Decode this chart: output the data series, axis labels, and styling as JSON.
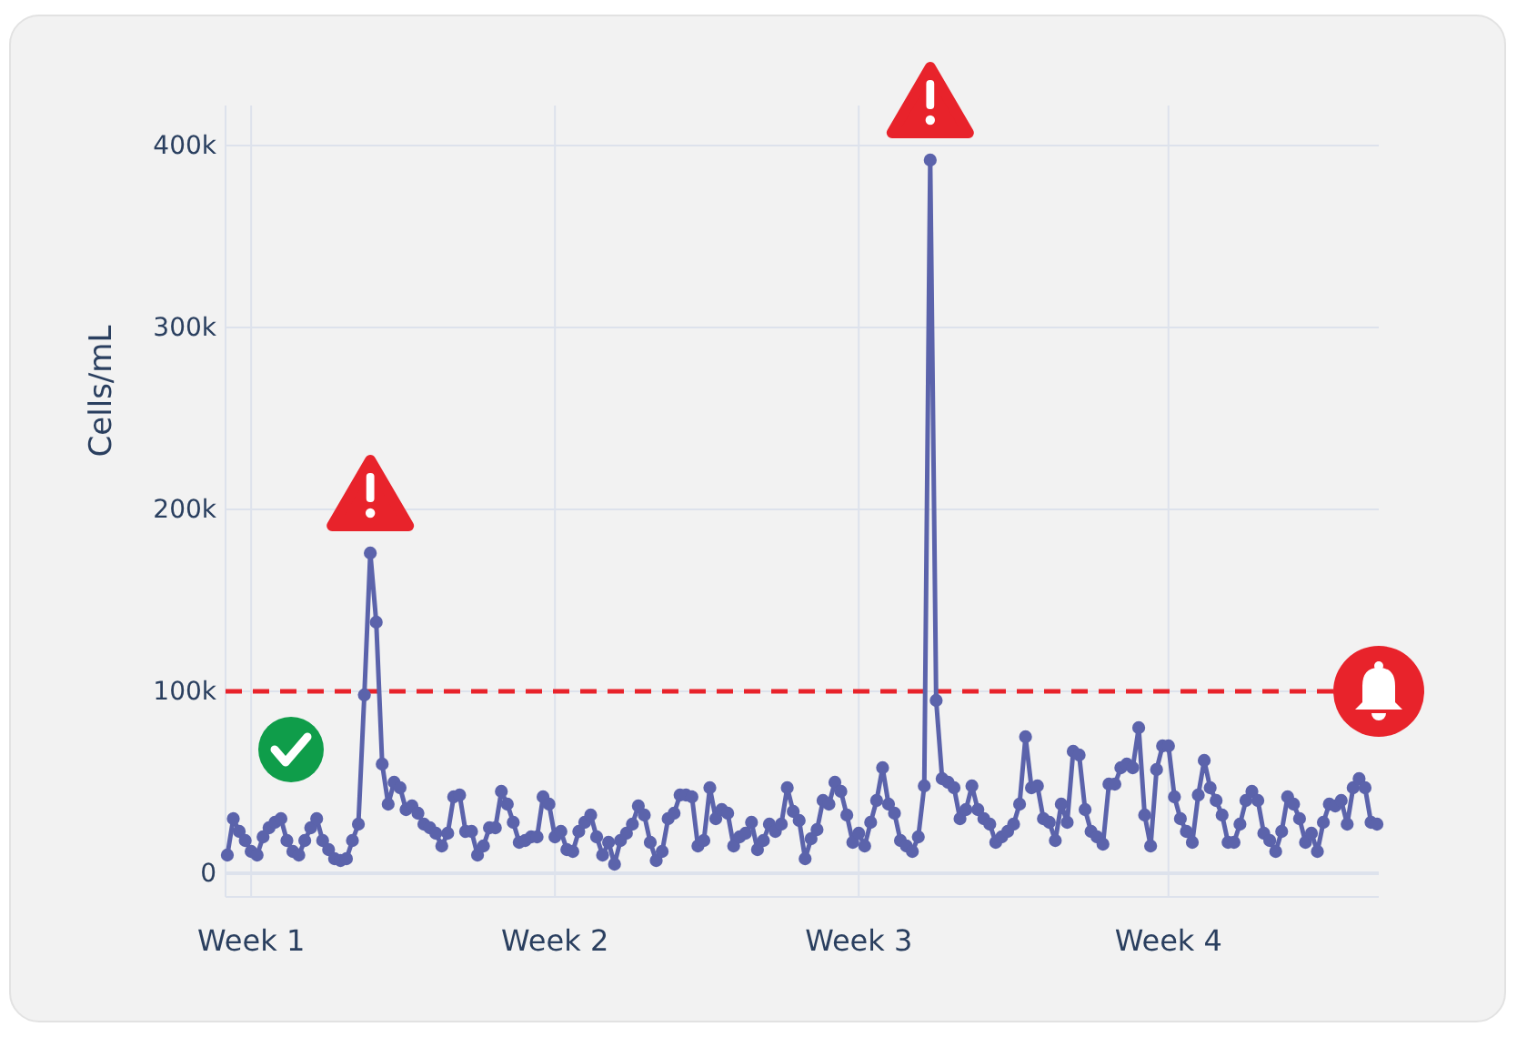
{
  "chart_data": {
    "type": "line",
    "ylabel": "Cells/mL",
    "categories": [
      null,
      null,
      null,
      null,
      "Week 1",
      null,
      null,
      null,
      null,
      null,
      null,
      null,
      null,
      null,
      null,
      null,
      null,
      null,
      null,
      null,
      null,
      null,
      null,
      null,
      null,
      null,
      null,
      null,
      null,
      null,
      null,
      null,
      null,
      null,
      null,
      null,
      null,
      null,
      null,
      null,
      null,
      null,
      null,
      null,
      null,
      null,
      null,
      null,
      null,
      null,
      null,
      null,
      null,
      null,
      null,
      "Week 2",
      null,
      null,
      null,
      null,
      null,
      null,
      null,
      null,
      null,
      null,
      null,
      null,
      null,
      null,
      null,
      null,
      null,
      null,
      null,
      null,
      null,
      null,
      null,
      null,
      null,
      null,
      null,
      null,
      null,
      null,
      null,
      null,
      null,
      null,
      null,
      null,
      null,
      null,
      null,
      null,
      null,
      null,
      null,
      null,
      null,
      null,
      null,
      null,
      null,
      null,
      "Week 3",
      null,
      null,
      null,
      null,
      null,
      null,
      null,
      null,
      null,
      null,
      null,
      null,
      null,
      null,
      null,
      null,
      null,
      null,
      null,
      null,
      null,
      null,
      null,
      null,
      null,
      null,
      null,
      null,
      null,
      null,
      null,
      null,
      null,
      null,
      null,
      null,
      null,
      null,
      null,
      null,
      null,
      null,
      null,
      null,
      null,
      null,
      null,
      null,
      null,
      null,
      null,
      "Week 4",
      null,
      null,
      null,
      null,
      null,
      null,
      null,
      null,
      null,
      null,
      null,
      null,
      null,
      null,
      null,
      null,
      null,
      null,
      null,
      null,
      null,
      null,
      null,
      null,
      null,
      null,
      null,
      null,
      null,
      null,
      null,
      null,
      null,
      null,
      null
    ],
    "series": [
      {
        "color": "#5b63ab",
        "values": [
          10000,
          30000,
          23000,
          18000,
          12000,
          10000,
          20000,
          25000,
          28000,
          30000,
          18000,
          12000,
          10000,
          18000,
          25000,
          30000,
          18000,
          13000,
          8000,
          7000,
          8000,
          18000,
          27000,
          98000,
          176000,
          138000,
          60000,
          38000,
          50000,
          47000,
          35000,
          37000,
          33000,
          27000,
          25000,
          22000,
          15000,
          22000,
          42000,
          43000,
          23000,
          23000,
          10000,
          15000,
          25000,
          25000,
          45000,
          38000,
          28000,
          17000,
          18000,
          20000,
          20000,
          42000,
          38000,
          20000,
          23000,
          13000,
          12000,
          23000,
          28000,
          32000,
          20000,
          10000,
          17000,
          5000,
          18000,
          22000,
          27000,
          37000,
          32000,
          17000,
          7000,
          12000,
          30000,
          33000,
          43000,
          43000,
          42000,
          15000,
          18000,
          47000,
          30000,
          35000,
          33000,
          15000,
          20000,
          22000,
          28000,
          13000,
          18000,
          27000,
          23000,
          27000,
          47000,
          34000,
          29000,
          8000,
          19000,
          24000,
          40000,
          38000,
          50000,
          45000,
          32000,
          17000,
          22000,
          15000,
          28000,
          40000,
          58000,
          38000,
          33000,
          18000,
          15000,
          12000,
          20000,
          48000,
          392000,
          95000,
          52000,
          50000,
          47000,
          30000,
          35000,
          48000,
          35000,
          30000,
          27000,
          17000,
          20000,
          23000,
          27000,
          38000,
          75000,
          47000,
          48000,
          30000,
          28000,
          18000,
          38000,
          28000,
          67000,
          65000,
          35000,
          23000,
          20000,
          16000,
          49000,
          49000,
          58000,
          60000,
          58000,
          80000,
          32000,
          15000,
          57000,
          70000,
          70000,
          42000,
          30000,
          23000,
          17000,
          43000,
          62000,
          47000,
          40000,
          32000,
          17000,
          17000,
          27000,
          40000,
          45000,
          40000,
          22000,
          18000,
          12000,
          23000,
          42000,
          38000,
          30000,
          17000,
          22000,
          12000,
          28000,
          38000,
          37000,
          40000,
          27000,
          47000,
          52000,
          47000,
          28000,
          27000
        ]
      }
    ],
    "ylim": [
      -13000,
      422000
    ],
    "yticks": [
      0,
      {
        "value": 100000,
        "label": "100k"
      },
      {
        "value": 200000,
        "label": "200k"
      },
      {
        "value": 300000,
        "label": "300k"
      },
      {
        "value": 400000,
        "label": "400k"
      }
    ],
    "grid": true,
    "marker": "circle",
    "line_style": "solid",
    "ref_lines": [
      {
        "axis": "y",
        "value": 100000,
        "color": "#e8232b",
        "line_style": "dashed"
      }
    ]
  }
}
